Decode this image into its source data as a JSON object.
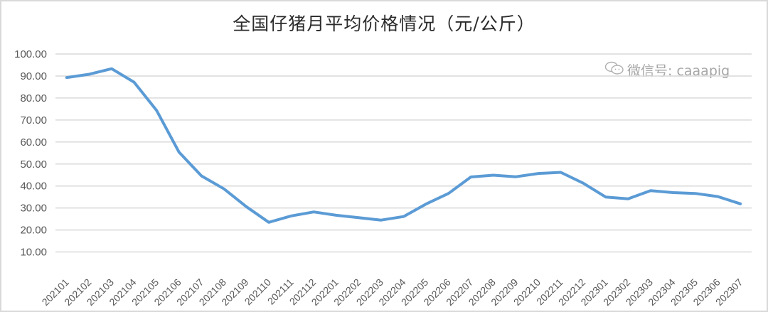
{
  "chart_data": {
    "type": "line",
    "title": "全国仔猪月平均价格情况（元/公斤）",
    "xlabel": "",
    "ylabel": "",
    "ylim": [
      0,
      100
    ],
    "yticks": [
      "10.00",
      "20.00",
      "30.00",
      "40.00",
      "50.00",
      "60.00",
      "70.00",
      "80.00",
      "90.00",
      "100.00"
    ],
    "grid": true,
    "legend": null,
    "categories": [
      "202101",
      "202102",
      "202103",
      "202104",
      "202105",
      "202106",
      "202107",
      "202108",
      "202109",
      "202110",
      "202111",
      "202112",
      "202201",
      "202202",
      "202203",
      "202204",
      "202205",
      "202206",
      "202207",
      "202208",
      "202209",
      "202210",
      "202211",
      "202212",
      "202301",
      "202302",
      "202303",
      "202304",
      "202305",
      "202306",
      "202307"
    ],
    "series": [
      {
        "name": "全国仔猪月平均价格",
        "color": "#5b9bd5",
        "values": [
          89.3,
          90.8,
          93.3,
          87.2,
          74.4,
          55.4,
          44.6,
          38.7,
          30.6,
          23.5,
          26.4,
          28.2,
          26.7,
          25.6,
          24.5,
          26.1,
          31.8,
          36.6,
          44.1,
          44.9,
          44.2,
          45.7,
          46.2,
          41.3,
          35.0,
          34.2,
          37.9,
          37.0,
          36.6,
          35.2,
          31.9
        ]
      }
    ],
    "annotations": [
      "微信号: caaapig"
    ]
  },
  "watermark": {
    "icon": "wechat-icon",
    "text": "微信号: caaapig"
  },
  "colors": {
    "line": "#5b9bd5",
    "grid": "#d9d9d9",
    "text": "#595959",
    "border": "#d9d9d9"
  }
}
